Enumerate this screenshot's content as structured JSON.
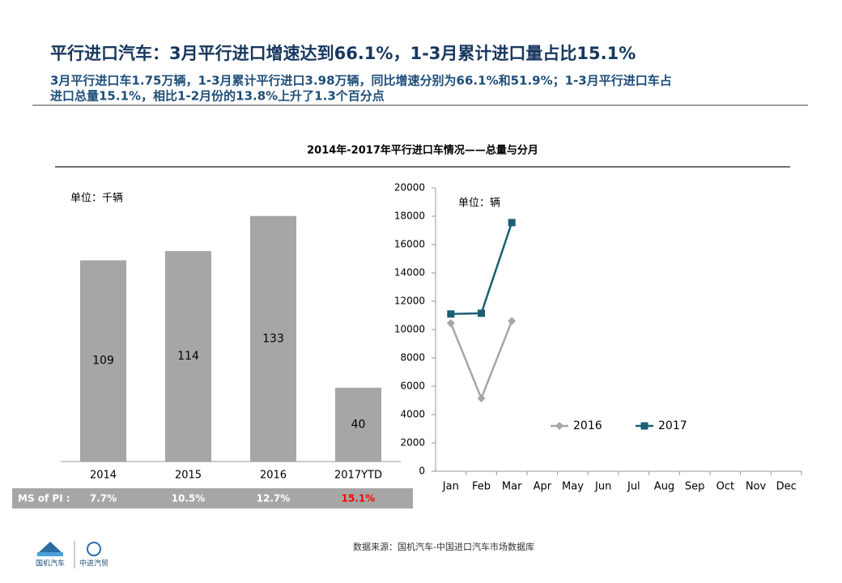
{
  "header": {
    "title": "平行进口汽车：3月平行进口增速达到66.1%，1-3月累计进口量占比15.1%",
    "subtitle_lines": [
      "3月平行进口车1.75万辆，1-3月累计平行进口3.98万辆，同比增速分别为66.1%和51.9%；1-3月平行进口车占",
      "进口总量15.1%，相比1-2月份的13.8%上升了1.3个百分点"
    ]
  },
  "panel_title": "2014年-2017年平行进口车情况——总量与分月",
  "chart_data": [
    {
      "type": "bar",
      "unit_label": "单位：千辆",
      "categories": [
        "2014",
        "2015",
        "2016",
        "2017YTD"
      ],
      "values": [
        109,
        114,
        133,
        40
      ],
      "color": "#a6a6a6"
    },
    {
      "type": "line",
      "unit_label": "单位：辆",
      "categories": [
        "Jan",
        "Feb",
        "Mar",
        "Apr",
        "May",
        "Jun",
        "Jul",
        "Aug",
        "Sep",
        "Oct",
        "Nov",
        "Dec"
      ],
      "series": [
        {
          "name": "2016",
          "color": "#a6a6a6",
          "marker": "diamond",
          "values": [
            10450,
            5150,
            10600,
            null,
            null,
            null,
            null,
            null,
            null,
            null,
            null,
            null
          ]
        },
        {
          "name": "2017",
          "color": "#1b5e74",
          "marker": "square",
          "values": [
            11100,
            11150,
            17550,
            null,
            null,
            null,
            null,
            null,
            null,
            null,
            null,
            null
          ]
        }
      ],
      "ylim": [
        0,
        20000
      ],
      "yticks": [
        0,
        2000,
        4000,
        6000,
        8000,
        10000,
        12000,
        14000,
        16000,
        18000,
        20000
      ],
      "legend": "lower-right"
    }
  ],
  "share_row": {
    "label": "MS of PI :",
    "cells": [
      "7.7%",
      "10.5%",
      "12.7%",
      "15.1%"
    ],
    "highlight_color": "#ff0000"
  },
  "source": "数据来源：国机汽车-中国进口汽车市场数据库",
  "logos": [
    "国机汽车",
    "中进汽贸"
  ]
}
